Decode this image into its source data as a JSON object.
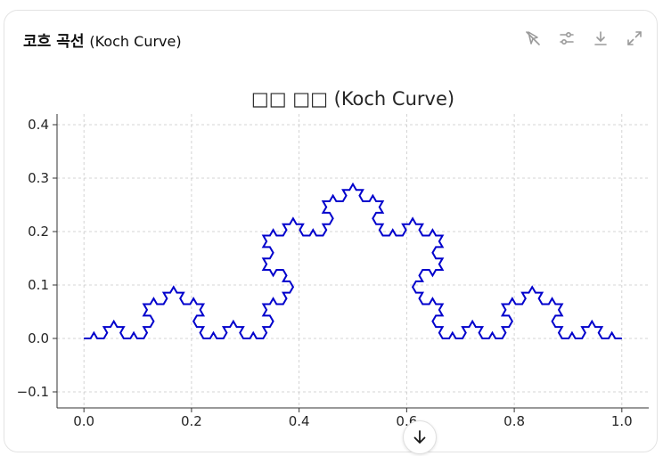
{
  "card": {
    "title_ko": "코흐 곡선",
    "title_en": "(Koch Curve)"
  },
  "toolbar": {
    "icons": [
      "cursor-crossed-icon",
      "sliders-icon",
      "download-icon",
      "expand-icon"
    ]
  },
  "chart_data": {
    "type": "line",
    "title": "코흐 곡선 (Koch Curve)",
    "title_rendered": "□□ □□ (Koch Curve)",
    "xlabel": "",
    "ylabel": "",
    "xlim": [
      -0.05,
      1.05
    ],
    "ylim": [
      -0.13,
      0.42
    ],
    "xticks": [
      0.0,
      0.2,
      0.4,
      0.6,
      0.8,
      1.0
    ],
    "xtick_labels": [
      "0.0",
      "0.2",
      "0.4",
      "0.6",
      "0.8",
      "1.0"
    ],
    "yticks": [
      -0.1,
      0.0,
      0.1,
      0.2,
      0.3,
      0.4
    ],
    "ytick_labels": [
      "−0.1",
      "0.0",
      "0.1",
      "0.2",
      "0.3",
      "0.4"
    ],
    "grid": true,
    "series": [
      {
        "color": "#0000cc",
        "curve": "koch",
        "iterations": 4,
        "start": [
          0,
          0
        ],
        "end": [
          1,
          0
        ]
      }
    ]
  }
}
